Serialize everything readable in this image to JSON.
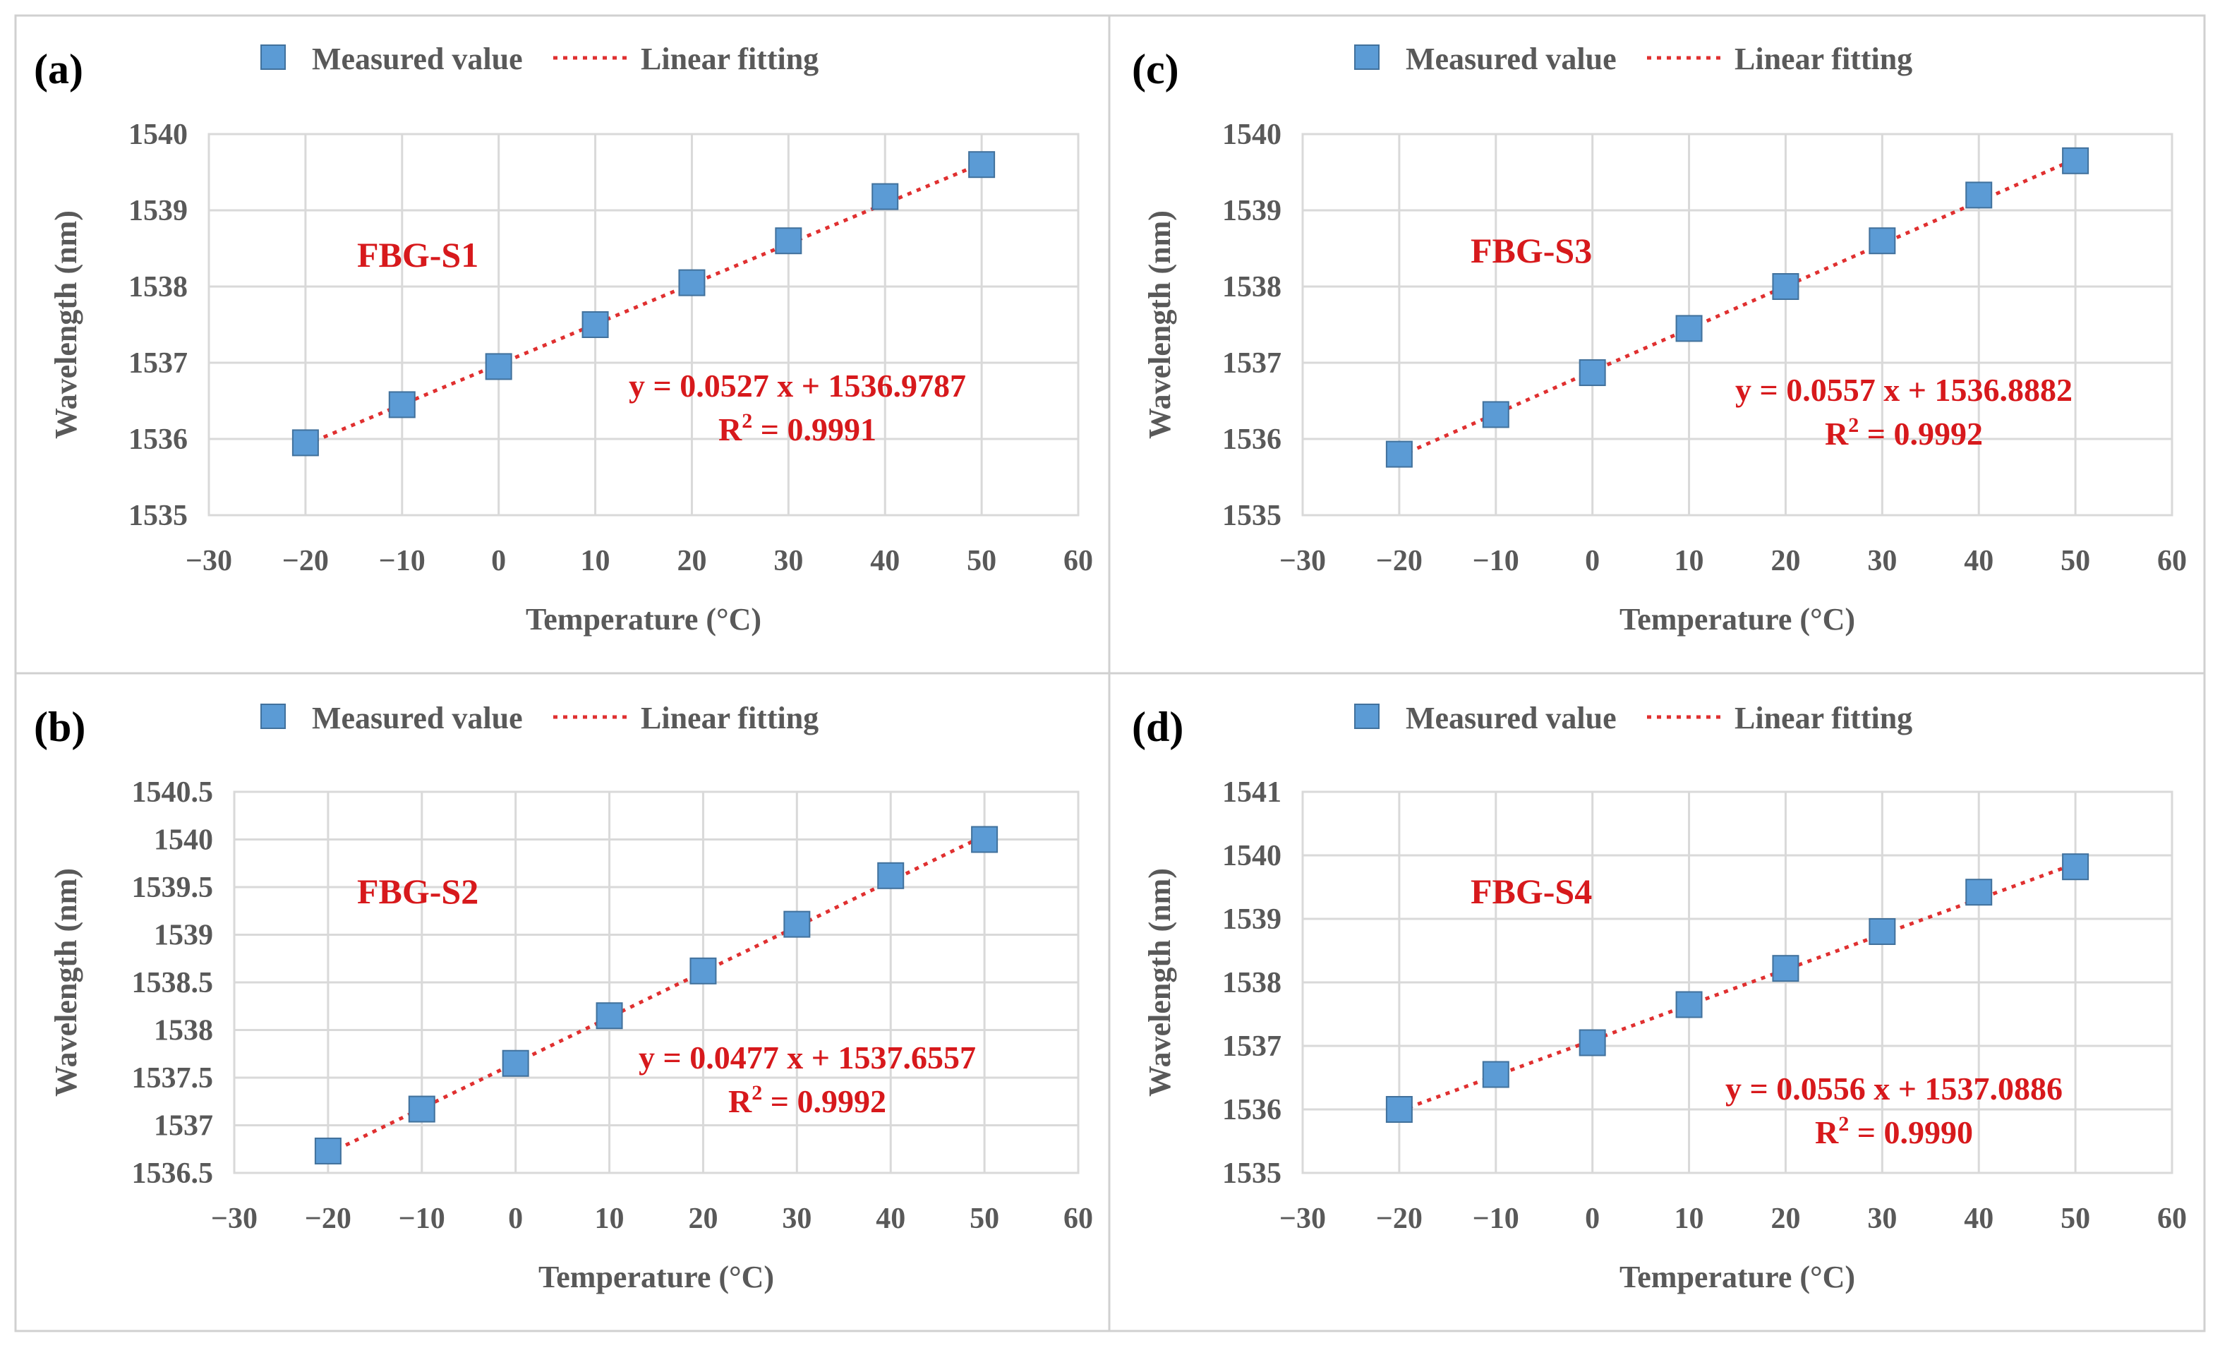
{
  "colors": {
    "marker": "#5b9bd5",
    "marker_edge": "#41719c",
    "fit_line": "#e03030",
    "annotation": "#d7191c",
    "axis_text": "#595959"
  },
  "chart_data": [
    {
      "type": "scatter",
      "panel": "(a)",
      "sensor_label": "FBG-S1",
      "legend": [
        "Measured value",
        "Linear fitting"
      ],
      "xlabel": "Temperature (°C)",
      "ylabel": "Wavelength (nm)",
      "xlim": [
        -30,
        60
      ],
      "ylim": [
        1535,
        1540
      ],
      "xticks": [
        -30,
        -20,
        -10,
        0,
        10,
        20,
        30,
        40,
        50,
        60
      ],
      "xtick_labels": [
        "−30",
        "−20",
        "−10",
        "0",
        "10",
        "20",
        "30",
        "40",
        "50",
        "60"
      ],
      "yticks": [
        1535,
        1536,
        1537,
        1538,
        1539,
        1540
      ],
      "ytick_labels": [
        "1535",
        "1536",
        "1537",
        "1538",
        "1539",
        "1540"
      ],
      "x": [
        -20,
        -10,
        0,
        10,
        20,
        30,
        40,
        50
      ],
      "y": [
        1535.95,
        1536.45,
        1536.95,
        1537.5,
        1538.05,
        1538.6,
        1539.18,
        1539.6
      ],
      "fit": {
        "slope": 0.0527,
        "intercept": 1536.9787,
        "x_range": [
          -20,
          50
        ]
      },
      "equation_prefix": "y = 0.0527 x + 1536.9787",
      "r2_value": " = 0.9991"
    },
    {
      "type": "scatter",
      "panel": "(b)",
      "sensor_label": "FBG-S2",
      "legend": [
        "Measured value",
        "Linear fitting"
      ],
      "xlabel": "Temperature (°C)",
      "ylabel": "Wavelength (nm)",
      "xlim": [
        -30,
        60
      ],
      "ylim": [
        1536.5,
        1540.5
      ],
      "xticks": [
        -30,
        -20,
        -10,
        0,
        10,
        20,
        30,
        40,
        50,
        60
      ],
      "xtick_labels": [
        "−30",
        "−20",
        "−10",
        "0",
        "10",
        "20",
        "30",
        "40",
        "50",
        "60"
      ],
      "yticks": [
        1536.5,
        1537,
        1537.5,
        1538,
        1538.5,
        1539,
        1539.5,
        1540,
        1540.5
      ],
      "ytick_labels": [
        "1536.5",
        "1537",
        "1537.5",
        "1538",
        "1538.5",
        "1539",
        "1539.5",
        "1540",
        "1540.5"
      ],
      "x": [
        -20,
        -10,
        0,
        10,
        20,
        30,
        40,
        50
      ],
      "y": [
        1536.73,
        1537.17,
        1537.65,
        1538.15,
        1538.62,
        1539.11,
        1539.62,
        1540.0
      ],
      "fit": {
        "slope": 0.0477,
        "intercept": 1537.6557,
        "x_range": [
          -20,
          50
        ]
      },
      "equation_prefix": "y = 0.0477 x + 1537.6557",
      "r2_value": " = 0.9992"
    },
    {
      "type": "scatter",
      "panel": "(c)",
      "sensor_label": "FBG-S3",
      "legend": [
        "Measured value",
        "Linear fitting"
      ],
      "xlabel": "Temperature (°C)",
      "ylabel": "Wavelength (nm)",
      "xlim": [
        -30,
        60
      ],
      "ylim": [
        1535,
        1540
      ],
      "xticks": [
        -30,
        -20,
        -10,
        0,
        10,
        20,
        30,
        40,
        50,
        60
      ],
      "xtick_labels": [
        "−30",
        "−20",
        "−10",
        "0",
        "10",
        "20",
        "30",
        "40",
        "50",
        "60"
      ],
      "yticks": [
        1535,
        1536,
        1537,
        1538,
        1539,
        1540
      ],
      "ytick_labels": [
        "1535",
        "1536",
        "1537",
        "1538",
        "1539",
        "1540"
      ],
      "x": [
        -20,
        -10,
        0,
        10,
        20,
        30,
        40,
        50
      ],
      "y": [
        1535.8,
        1536.32,
        1536.87,
        1537.45,
        1538.0,
        1538.6,
        1539.2,
        1539.65
      ],
      "fit": {
        "slope": 0.0557,
        "intercept": 1536.8882,
        "x_range": [
          -20,
          50
        ]
      },
      "equation_prefix": "y = 0.0557 x + 1536.8882",
      "r2_value": " = 0.9992"
    },
    {
      "type": "scatter",
      "panel": "(d)",
      "sensor_label": "FBG-S4",
      "legend": [
        "Measured value",
        "Linear fitting"
      ],
      "xlabel": "Temperature (°C)",
      "ylabel": "Wavelength (nm)",
      "xlim": [
        -30,
        60
      ],
      "ylim": [
        1535,
        1541
      ],
      "xticks": [
        -30,
        -20,
        -10,
        0,
        10,
        20,
        30,
        40,
        50,
        60
      ],
      "xtick_labels": [
        "−30",
        "−20",
        "−10",
        "0",
        "10",
        "20",
        "30",
        "40",
        "50",
        "60"
      ],
      "yticks": [
        1535,
        1536,
        1537,
        1538,
        1539,
        1540,
        1541
      ],
      "ytick_labels": [
        "1535",
        "1536",
        "1537",
        "1538",
        "1539",
        "1540",
        "1541"
      ],
      "x": [
        -20,
        -10,
        0,
        10,
        20,
        30,
        40,
        50
      ],
      "y": [
        1536.0,
        1536.55,
        1537.05,
        1537.65,
        1538.22,
        1538.8,
        1539.42,
        1539.82
      ],
      "fit": {
        "slope": 0.0556,
        "intercept": 1537.0886,
        "x_range": [
          -20,
          50
        ]
      },
      "equation_prefix": "y = 0.0556 x + 1537.0886",
      "r2_value": " = 0.9990"
    }
  ]
}
